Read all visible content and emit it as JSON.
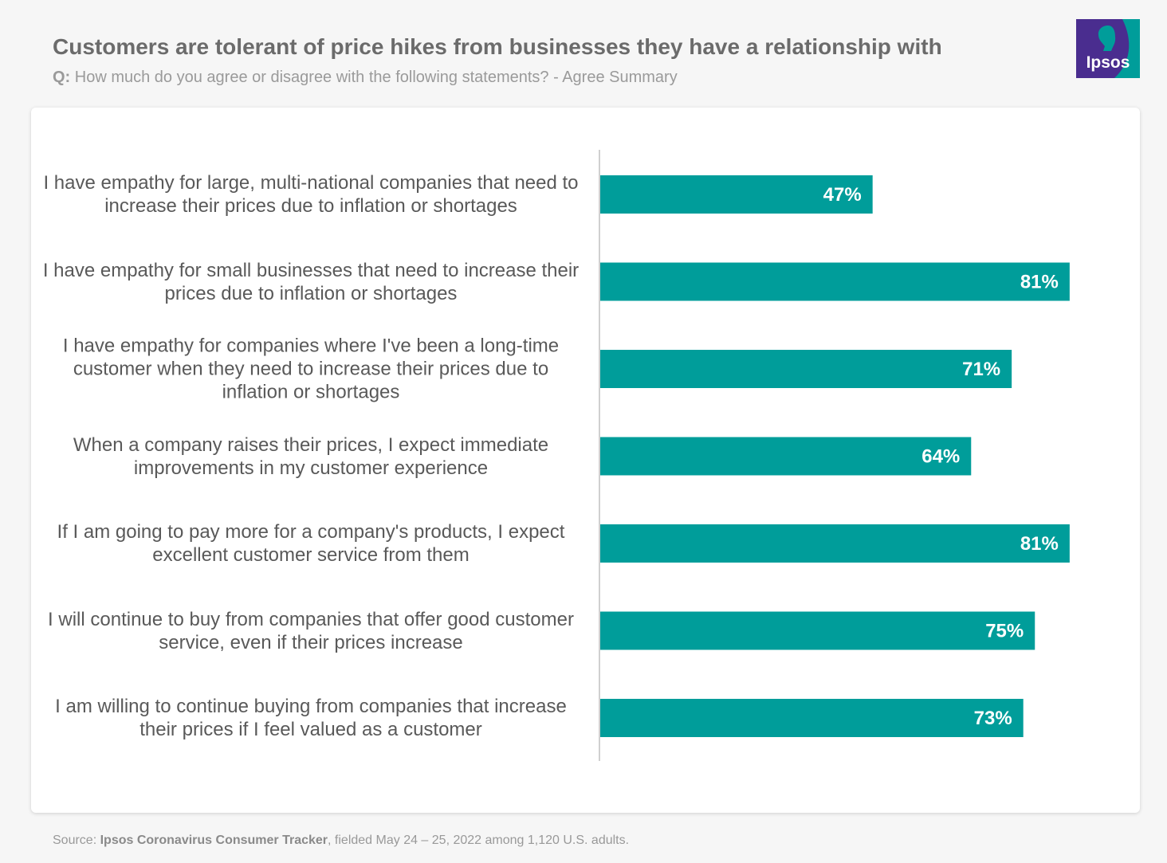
{
  "header": {
    "title": "Customers are tolerant of price hikes from businesses they have a relationship with",
    "question_prefix": "Q:",
    "question_text": "How much do you agree or disagree with the following statements? - Agree Summary"
  },
  "logo": {
    "text": "Ipsos",
    "colors": {
      "primary": "#4a2d8f",
      "accent": "#009d9a"
    }
  },
  "colors": {
    "bar": "#009d9a",
    "bar_label": "#ffffff",
    "axis": "#d0d0d0"
  },
  "chart_data": {
    "type": "bar",
    "orientation": "horizontal",
    "title": "Customers are tolerant of price hikes from businesses they have a relationship with",
    "xlabel": "",
    "ylabel": "",
    "xlim": [
      0,
      100
    ],
    "grid": false,
    "categories": [
      "I have empathy for large, multi-national companies that need to increase their prices due to inflation or shortages",
      "I have empathy for small businesses that need to increase their prices due to inflation or shortages",
      "I have empathy for companies where I've been a long-time customer when they need to increase their prices due to inflation or shortages",
      "When a company raises their prices, I expect immediate improvements in my customer experience",
      "If I am going to pay more for a company's products, I expect excellent customer service from them",
      "I will continue to buy from companies that offer good customer service, even if their prices increase",
      "I am willing to continue buying from companies that increase their prices if I feel valued as a customer"
    ],
    "values": [
      47,
      81,
      71,
      64,
      81,
      75,
      73
    ],
    "value_labels": [
      "47%",
      "81%",
      "71%",
      "64%",
      "81%",
      "75%",
      "73%"
    ]
  },
  "footer": {
    "source_prefix": "Source:",
    "source_name": "Ipsos Coronavirus Consumer Tracker",
    "source_rest": ", fielded May 24 – 25, 2022 among 1,120 U.S. adults."
  }
}
